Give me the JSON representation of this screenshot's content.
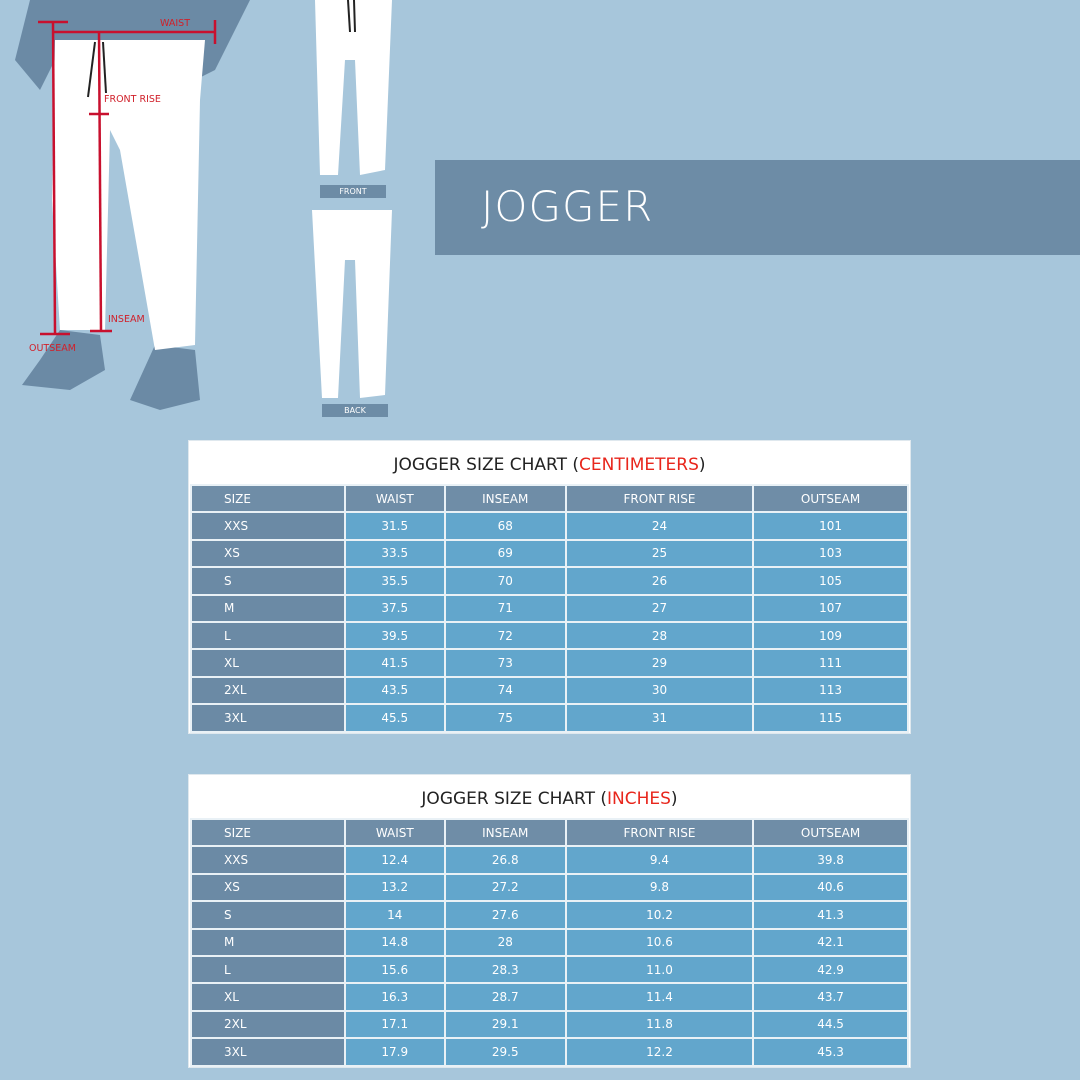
{
  "header": {
    "title": "JOGGER"
  },
  "illustration": {
    "labels": {
      "waist": "WAIST",
      "front_rise": "FRONT RISE",
      "inseam": "INSEAM",
      "outseam": "OUTSEAM"
    },
    "front_tag": "FRONT",
    "back_tag": "BACK"
  },
  "colors": {
    "background": "#a7c6db",
    "band": "#6d8ca6",
    "header_cell": "#6f8da7",
    "data_cell": "#62a6cc",
    "accent_red": "#e8261c"
  },
  "tables": [
    {
      "title": "JOGGER SIZE CHART (",
      "unit": "CENTIMETERS",
      "close": ")",
      "columns": [
        "SIZE",
        "WAIST",
        "INSEAM",
        "FRONT RISE",
        "OUTSEAM"
      ],
      "rows": [
        [
          "XXS",
          "31.5",
          "68",
          "24",
          "101"
        ],
        [
          "XS",
          "33.5",
          "69",
          "25",
          "103"
        ],
        [
          "S",
          "35.5",
          "70",
          "26",
          "105"
        ],
        [
          "M",
          "37.5",
          "71",
          "27",
          "107"
        ],
        [
          "L",
          "39.5",
          "72",
          "28",
          "109"
        ],
        [
          "XL",
          "41.5",
          "73",
          "29",
          "111"
        ],
        [
          "2XL",
          "43.5",
          "74",
          "30",
          "113"
        ],
        [
          "3XL",
          "45.5",
          "75",
          "31",
          "115"
        ]
      ]
    },
    {
      "title": "JOGGER SIZE CHART (",
      "unit": "INCHES",
      "close": ")",
      "columns": [
        "SIZE",
        "WAIST",
        "INSEAM",
        "FRONT RISE",
        "OUTSEAM"
      ],
      "rows": [
        [
          "XXS",
          "12.4",
          "26.8",
          "9.4",
          "39.8"
        ],
        [
          "XS",
          "13.2",
          "27.2",
          "9.8",
          "40.6"
        ],
        [
          "S",
          "14",
          "27.6",
          "10.2",
          "41.3"
        ],
        [
          "M",
          "14.8",
          "28",
          "10.6",
          "42.1"
        ],
        [
          "L",
          "15.6",
          "28.3",
          "11.0",
          "42.9"
        ],
        [
          "XL",
          "16.3",
          "28.7",
          "11.4",
          "43.7"
        ],
        [
          "2XL",
          "17.1",
          "29.1",
          "11.8",
          "44.5"
        ],
        [
          "3XL",
          "17.9",
          "29.5",
          "12.2",
          "45.3"
        ]
      ]
    }
  ]
}
